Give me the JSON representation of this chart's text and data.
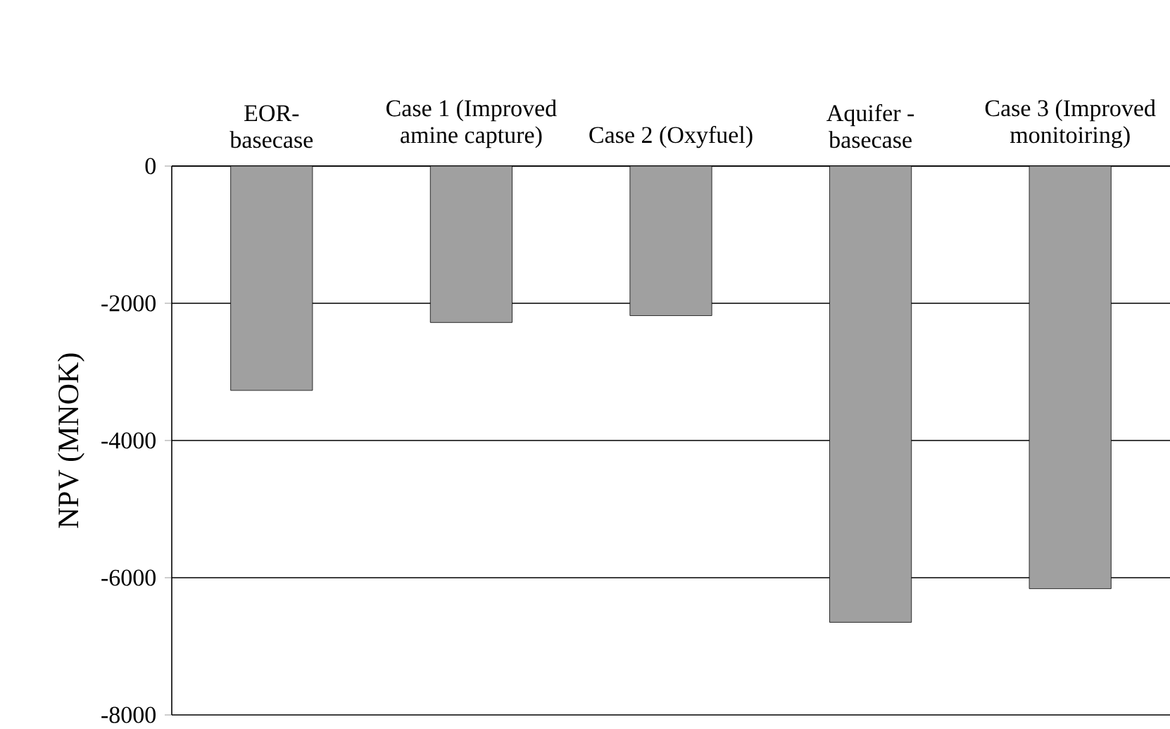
{
  "chart_data": {
    "type": "bar",
    "categories": [
      "EOR- basecase",
      "Case 1 (Improved amine capture)",
      "Case 2 (Oxyfuel)",
      "Aquifer - basecase",
      "Case 3 (Improved monitoiring)"
    ],
    "values": [
      -3270,
      -2280,
      -2180,
      -6650,
      -6160
    ],
    "color": "#a0a0a0",
    "ylabel": "NPV (MNOK)",
    "ylim": [
      -8000,
      0
    ],
    "yticks": [
      -8000,
      -6000,
      -4000,
      -2000,
      0
    ],
    "grid": "y"
  }
}
